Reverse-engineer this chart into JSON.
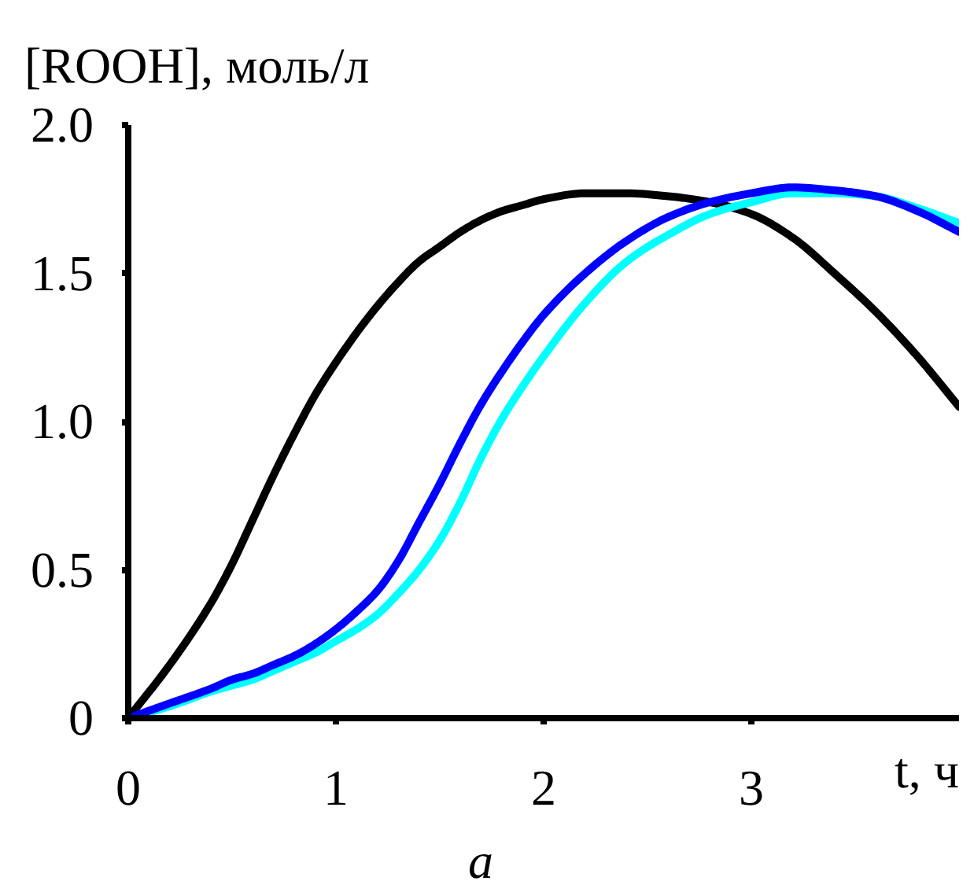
{
  "chart_data": {
    "type": "line",
    "ylabel": "[ROOH], моль/л",
    "xlabel": "t, ч",
    "annotations": [
      "a"
    ],
    "xlim": [
      0,
      4
    ],
    "ylim": [
      0,
      2
    ],
    "xticks": [
      0,
      1,
      2,
      3
    ],
    "yticks": [
      0,
      0.5,
      {
        "value": 1,
        "label": "1.0"
      },
      1.5,
      {
        "value": 2,
        "label": "2.0"
      }
    ],
    "x": [
      0,
      0.2,
      0.4,
      0.5,
      0.6,
      0.7,
      0.8,
      0.9,
      1.0,
      1.1,
      1.2,
      1.3,
      1.4,
      1.5,
      1.6,
      1.7,
      1.8,
      1.9,
      2.0,
      2.2,
      2.4,
      2.6,
      2.8,
      3.0,
      3.2,
      3.4,
      3.6,
      3.8,
      4.0
    ],
    "series": [
      {
        "color": "#000000",
        "values": [
          0,
          0.18,
          0.39,
          0.52,
          0.67,
          0.82,
          0.96,
          1.09,
          1.2,
          1.3,
          1.39,
          1.47,
          1.54,
          1.59,
          1.64,
          1.68,
          1.71,
          1.73,
          1.75,
          1.77,
          1.77,
          1.76,
          1.74,
          1.7,
          1.62,
          1.5,
          1.37,
          1.22,
          1.05
        ]
      },
      {
        "color": "#00ffff",
        "values": [
          0,
          0.04,
          0.09,
          0.11,
          0.13,
          0.16,
          0.19,
          0.22,
          0.26,
          0.3,
          0.35,
          0.42,
          0.5,
          0.6,
          0.73,
          0.88,
          1.01,
          1.12,
          1.22,
          1.4,
          1.54,
          1.63,
          1.7,
          1.74,
          1.77,
          1.77,
          1.76,
          1.72,
          1.67
        ]
      },
      {
        "color": "#0000ff",
        "values": [
          0,
          0.05,
          0.1,
          0.13,
          0.15,
          0.18,
          0.21,
          0.25,
          0.3,
          0.36,
          0.43,
          0.53,
          0.66,
          0.79,
          0.93,
          1.06,
          1.17,
          1.27,
          1.36,
          1.5,
          1.61,
          1.69,
          1.74,
          1.77,
          1.79,
          1.78,
          1.76,
          1.71,
          1.64
        ]
      }
    ]
  }
}
